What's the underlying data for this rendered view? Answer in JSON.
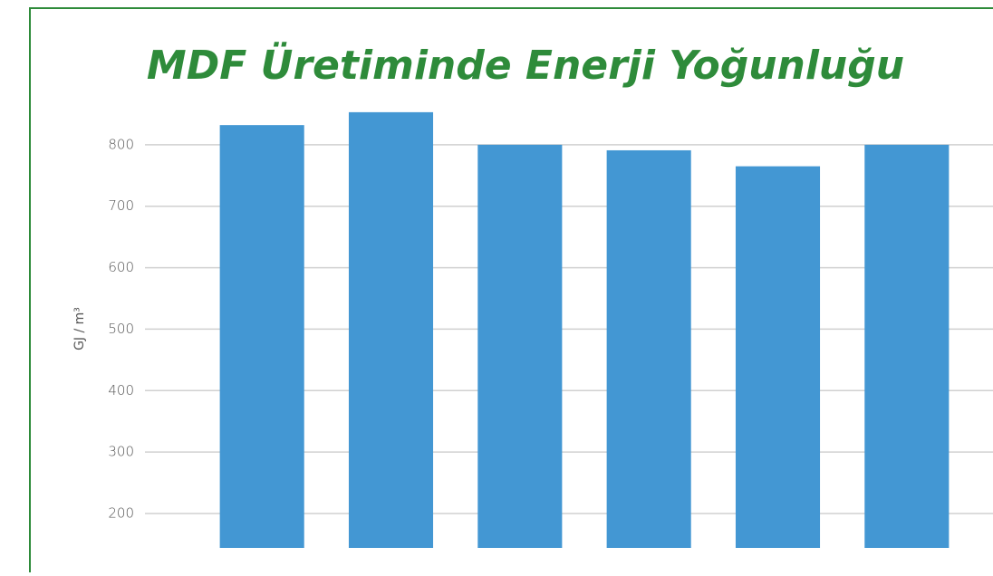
{
  "chart_data": {
    "type": "bar",
    "title": "MDF Üretiminde Enerji Yoğunluğu",
    "y_label": "GJ / m³",
    "categories": [
      null,
      null,
      null,
      null,
      null,
      null
    ],
    "values": [
      832,
      853,
      800,
      791,
      765,
      800
    ],
    "color": "#4397d3",
    "ylim": [
      144,
      900
    ],
    "yticks": [
      200,
      300,
      400,
      500,
      600,
      700,
      800
    ],
    "grid": true
  }
}
